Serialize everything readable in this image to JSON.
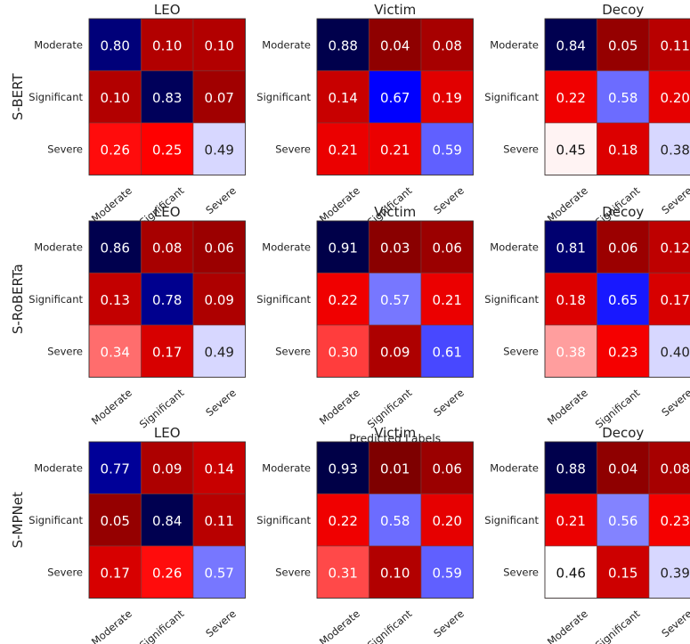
{
  "chart_data": {
    "type": "heatmap",
    "class_labels": [
      "Moderate",
      "Significant",
      "Severe"
    ],
    "xlabel": "Predicted Labels",
    "colors": {
      "low": "#ffffff",
      "mid": "#ff0000",
      "high_a": "#0000ff",
      "high_b": "#000050"
    },
    "models": [
      {
        "name": "S-BERT",
        "xlabel": "",
        "panels": [
          {
            "title": "LEO",
            "matrix": [
              [
                0.8,
                0.1,
                0.1
              ],
              [
                0.1,
                0.83,
                0.07
              ],
              [
                0.26,
                0.25,
                0.49
              ]
            ]
          },
          {
            "title": "Victim",
            "matrix": [
              [
                0.88,
                0.04,
                0.08
              ],
              [
                0.14,
                0.67,
                0.19
              ],
              [
                0.21,
                0.21,
                0.59
              ]
            ]
          },
          {
            "title": "Decoy",
            "matrix": [
              [
                0.84,
                0.05,
                0.11
              ],
              [
                0.22,
                0.58,
                0.2
              ],
              [
                0.45,
                0.18,
                0.38
              ]
            ]
          }
        ]
      },
      {
        "name": "S-RoBERTa",
        "xlabel": "Predicted Labels",
        "panels": [
          {
            "title": "LEO",
            "matrix": [
              [
                0.86,
                0.08,
                0.06
              ],
              [
                0.13,
                0.78,
                0.09
              ],
              [
                0.34,
                0.17,
                0.49
              ]
            ]
          },
          {
            "title": "Victim",
            "matrix": [
              [
                0.91,
                0.03,
                0.06
              ],
              [
                0.22,
                0.57,
                0.21
              ],
              [
                0.3,
                0.09,
                0.61
              ]
            ]
          },
          {
            "title": "Decoy",
            "matrix": [
              [
                0.81,
                0.06,
                0.12
              ],
              [
                0.18,
                0.65,
                0.17
              ],
              [
                0.38,
                0.23,
                0.4
              ]
            ]
          }
        ]
      },
      {
        "name": "S-MPNet",
        "xlabel": "Predicted Labels",
        "panels": [
          {
            "title": "LEO",
            "matrix": [
              [
                0.77,
                0.09,
                0.14
              ],
              [
                0.05,
                0.84,
                0.11
              ],
              [
                0.17,
                0.26,
                0.57
              ]
            ]
          },
          {
            "title": "Victim",
            "matrix": [
              [
                0.93,
                0.01,
                0.06
              ],
              [
                0.22,
                0.58,
                0.2
              ],
              [
                0.31,
                0.1,
                0.59
              ]
            ]
          },
          {
            "title": "Decoy",
            "matrix": [
              [
                0.88,
                0.04,
                0.08
              ],
              [
                0.21,
                0.56,
                0.23
              ],
              [
                0.46,
                0.15,
                0.39
              ]
            ]
          }
        ]
      }
    ]
  }
}
